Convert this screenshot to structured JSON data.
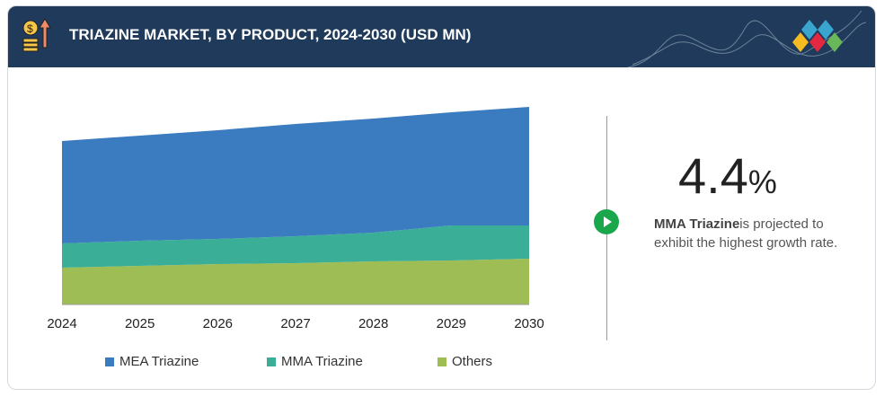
{
  "header": {
    "title": "TRIAZINE MARKET, BY PRODUCT, 2024-2030 (USD MN)"
  },
  "highlight": {
    "value": "4.4",
    "unit": "%",
    "segment": "MMA Triazine",
    "text": "is projected to exhibit the highest growth rate."
  },
  "colors": {
    "MEA Triazine": "#3b7bbf",
    "MMA Triazine": "#3aae97",
    "Others": "#9fbd55"
  },
  "chart_data": {
    "type": "area",
    "stacked": true,
    "title": "TRIAZINE MARKET, BY PRODUCT, 2024-2030 (USD MN)",
    "categories": [
      "2024",
      "2025",
      "2026",
      "2027",
      "2028",
      "2029",
      "2030"
    ],
    "note": "relative values (no y-axis shown)",
    "series": [
      {
        "name": "Others",
        "values": [
          41,
          43,
          45,
          46,
          48,
          49,
          51
        ]
      },
      {
        "name": "MMA Triazine",
        "values": [
          27,
          28,
          28,
          30,
          32,
          39,
          37
        ]
      },
      {
        "name": "MEA Triazine",
        "values": [
          114,
          117,
          121,
          125,
          127,
          126,
          132
        ]
      }
    ],
    "legend": [
      "MEA Triazine",
      "MMA Triazine",
      "Others"
    ],
    "legend_position": "bottom"
  }
}
